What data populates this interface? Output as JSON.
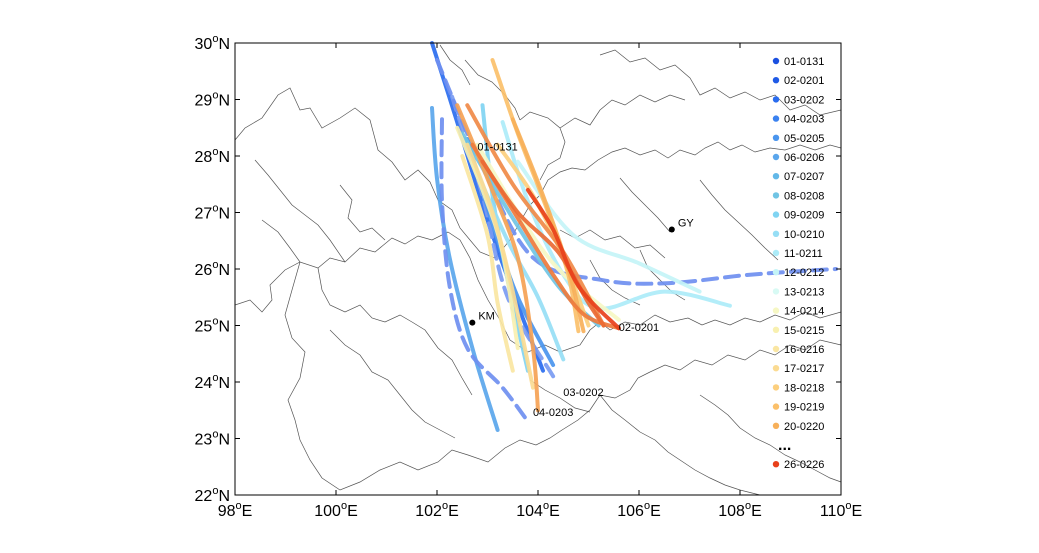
{
  "x_ticks": [
    {
      "deg": "98",
      "dir": "E"
    },
    {
      "deg": "100",
      "dir": "E"
    },
    {
      "deg": "102",
      "dir": "E"
    },
    {
      "deg": "104",
      "dir": "E"
    },
    {
      "deg": "106",
      "dir": "E"
    },
    {
      "deg": "108",
      "dir": "E"
    },
    {
      "deg": "110",
      "dir": "E"
    }
  ],
  "y_ticks": [
    {
      "deg": "30",
      "dir": "N"
    },
    {
      "deg": "29",
      "dir": "N"
    },
    {
      "deg": "28",
      "dir": "N"
    },
    {
      "deg": "27",
      "dir": "N"
    },
    {
      "deg": "26",
      "dir": "N"
    },
    {
      "deg": "25",
      "dir": "N"
    },
    {
      "deg": "24",
      "dir": "N"
    },
    {
      "deg": "23",
      "dir": "N"
    },
    {
      "deg": "22",
      "dir": "N"
    }
  ],
  "degree_symbol": "o",
  "cities": [
    {
      "name": "KM",
      "lon": 102.7,
      "lat": 25.05
    },
    {
      "name": "GY",
      "lon": 106.65,
      "lat": 26.7
    }
  ],
  "track_labels": [
    {
      "text": "01-0131",
      "lon": 102.8,
      "lat": 28.1
    },
    {
      "text": "02-0201",
      "lon": 105.6,
      "lat": 24.9
    },
    {
      "text": "03-0202",
      "lon": 104.5,
      "lat": 23.75
    },
    {
      "text": "04-0203",
      "lon": 103.9,
      "lat": 23.4
    }
  ],
  "legend": {
    "items": [
      {
        "label": "01-0131",
        "color": "#1a4fe0"
      },
      {
        "label": "02-0201",
        "color": "#1f5ae6"
      },
      {
        "label": "03-0202",
        "color": "#2a6cef"
      },
      {
        "label": "04-0203",
        "color": "#3b82f0"
      },
      {
        "label": "05-0205",
        "color": "#4a95ee"
      },
      {
        "label": "06-0206",
        "color": "#5aa6ec"
      },
      {
        "label": "07-0207",
        "color": "#62b8e8"
      },
      {
        "label": "08-0208",
        "color": "#70c4e4"
      },
      {
        "label": "09-0209",
        "color": "#80d4f2"
      },
      {
        "label": "10-0210",
        "color": "#96def5"
      },
      {
        "label": "11-0211",
        "color": "#acebf8"
      },
      {
        "label": "12-0212",
        "color": "#c4f4f7"
      },
      {
        "label": "13-0213",
        "color": "#d8faf4"
      },
      {
        "label": "14-0214",
        "color": "#f6f7c4"
      },
      {
        "label": "15-0215",
        "color": "#f8f0b0"
      },
      {
        "label": "16-0216",
        "color": "#fae6a2"
      },
      {
        "label": "17-0217",
        "color": "#fbdb92"
      },
      {
        "label": "18-0218",
        "color": "#fccf7e"
      },
      {
        "label": "19-0219",
        "color": "#fbc06a"
      },
      {
        "label": "20-0220",
        "color": "#f7b05a"
      }
    ],
    "ellipsis": "...",
    "last": {
      "label": "26-0226",
      "color": "#e8401a"
    }
  },
  "tracks": [
    {
      "color": "#5aa6ec",
      "dashed": false,
      "pts": [
        [
          101.9,
          28.85
        ],
        [
          102.0,
          27.6
        ],
        [
          102.25,
          26.2
        ],
        [
          102.7,
          24.6
        ],
        [
          103.2,
          23.15
        ]
      ]
    },
    {
      "color": "#2a6cef",
      "dashed": false,
      "pts": [
        [
          101.9,
          30.0
        ],
        [
          102.4,
          28.6
        ],
        [
          102.95,
          27.0
        ],
        [
          103.5,
          25.6
        ],
        [
          104.1,
          24.2
        ]
      ]
    },
    {
      "color": "#6f8ff0",
      "dashed": true,
      "pts": [
        [
          102.1,
          28.65
        ],
        [
          102.1,
          27.2
        ],
        [
          102.25,
          25.7
        ],
        [
          102.6,
          24.6
        ],
        [
          103.3,
          23.9
        ],
        [
          103.8,
          23.3
        ]
      ]
    },
    {
      "color": "#7a9bf2",
      "dashed": true,
      "pts": [
        [
          102.3,
          29.05
        ],
        [
          102.9,
          27.3
        ],
        [
          103.4,
          25.5
        ],
        [
          104.3,
          24.1
        ]
      ]
    },
    {
      "color": "#6f8ff0",
      "dashed": true,
      "pts": [
        [
          102.0,
          29.7
        ],
        [
          102.9,
          27.8
        ],
        [
          103.9,
          26.2
        ],
        [
          105.3,
          25.8
        ],
        [
          106.6,
          25.75
        ],
        [
          108.2,
          25.9
        ],
        [
          109.9,
          26.0
        ]
      ]
    },
    {
      "color": "#4a95ee",
      "dashed": false,
      "pts": [
        [
          102.6,
          28.3
        ],
        [
          103.1,
          26.8
        ],
        [
          103.6,
          25.5
        ],
        [
          104.3,
          24.3
        ]
      ]
    },
    {
      "color": "#80d4f2",
      "dashed": false,
      "pts": [
        [
          102.9,
          28.9
        ],
        [
          103.1,
          27.3
        ],
        [
          103.4,
          25.8
        ],
        [
          103.8,
          24.2
        ]
      ]
    },
    {
      "color": "#96def5",
      "dashed": false,
      "pts": [
        [
          102.7,
          27.9
        ],
        [
          103.4,
          26.5
        ],
        [
          104.0,
          25.5
        ],
        [
          104.5,
          24.4
        ]
      ]
    },
    {
      "color": "#acebf8",
      "dashed": false,
      "pts": [
        [
          103.3,
          28.6
        ],
        [
          103.8,
          27.2
        ],
        [
          104.5,
          25.9
        ],
        [
          105.2,
          25.3
        ],
        [
          106.5,
          25.6
        ],
        [
          107.8,
          25.35
        ]
      ]
    },
    {
      "color": "#c4f4f7",
      "dashed": false,
      "pts": [
        [
          103.6,
          27.9
        ],
        [
          104.7,
          26.6
        ],
        [
          106.0,
          26.1
        ],
        [
          107.2,
          25.6
        ]
      ]
    },
    {
      "color": "#70c4e4",
      "dashed": false,
      "pts": [
        [
          102.5,
          28.4
        ],
        [
          103.5,
          26.9
        ],
        [
          104.4,
          25.7
        ],
        [
          105.2,
          25.0
        ]
      ]
    },
    {
      "color": "#f6f7c4",
      "dashed": false,
      "pts": [
        [
          102.8,
          28.2
        ],
        [
          103.6,
          27.0
        ],
        [
          104.4,
          26.0
        ],
        [
          105.6,
          25.1
        ]
      ]
    },
    {
      "color": "#f8f0b0",
      "dashed": false,
      "pts": [
        [
          102.4,
          28.5
        ],
        [
          102.9,
          27.4
        ],
        [
          103.3,
          26.3
        ],
        [
          103.6,
          24.6
        ]
      ]
    },
    {
      "color": "#fae6a2",
      "dashed": false,
      "pts": [
        [
          102.5,
          28.0
        ],
        [
          103.0,
          26.6
        ],
        [
          103.2,
          25.4
        ],
        [
          103.5,
          24.2
        ]
      ]
    },
    {
      "color": "#fbdb92",
      "dashed": false,
      "pts": [
        [
          102.6,
          28.2
        ],
        [
          103.1,
          27.0
        ],
        [
          103.5,
          25.6
        ],
        [
          103.9,
          23.9
        ]
      ]
    },
    {
      "color": "#fccf7e",
      "dashed": false,
      "pts": [
        [
          103.2,
          28.2
        ],
        [
          103.9,
          27.3
        ],
        [
          104.5,
          26.2
        ],
        [
          105.0,
          25.0
        ]
      ]
    },
    {
      "color": "#fbc06a",
      "dashed": false,
      "pts": [
        [
          103.1,
          29.7
        ],
        [
          103.6,
          28.4
        ],
        [
          104.2,
          27.0
        ],
        [
          104.6,
          25.9
        ],
        [
          104.8,
          24.9
        ]
      ]
    },
    {
      "color": "#f7b05a",
      "dashed": false,
      "pts": [
        [
          103.5,
          28.65
        ],
        [
          104.1,
          27.3
        ],
        [
          104.6,
          26.0
        ],
        [
          104.9,
          24.9
        ]
      ]
    },
    {
      "color": "#f5a255",
      "dashed": false,
      "pts": [
        [
          102.4,
          28.9
        ],
        [
          103.0,
          27.6
        ],
        [
          103.6,
          26.2
        ],
        [
          103.9,
          24.6
        ],
        [
          104.0,
          23.5
        ]
      ]
    },
    {
      "color": "#f08a48",
      "dashed": false,
      "pts": [
        [
          102.6,
          28.9
        ],
        [
          103.5,
          27.5
        ],
        [
          104.5,
          26.3
        ],
        [
          105.3,
          25.0
        ]
      ]
    },
    {
      "color": "#ee7a3c",
      "dashed": false,
      "pts": [
        [
          102.7,
          28.2
        ],
        [
          103.6,
          26.9
        ],
        [
          104.3,
          25.9
        ],
        [
          104.9,
          25.2
        ],
        [
          105.6,
          24.95
        ]
      ]
    },
    {
      "color": "#ea6a34",
      "dashed": false,
      "pts": [
        [
          102.9,
          27.9
        ],
        [
          103.6,
          27.0
        ],
        [
          104.4,
          26.3
        ],
        [
          105.0,
          25.4
        ],
        [
          105.3,
          25.0
        ]
      ]
    },
    {
      "color": "#e8401a",
      "dashed": false,
      "pts": [
        [
          103.8,
          27.4
        ],
        [
          104.3,
          26.7
        ],
        [
          104.8,
          25.7
        ],
        [
          105.6,
          24.95
        ]
      ]
    }
  ]
}
